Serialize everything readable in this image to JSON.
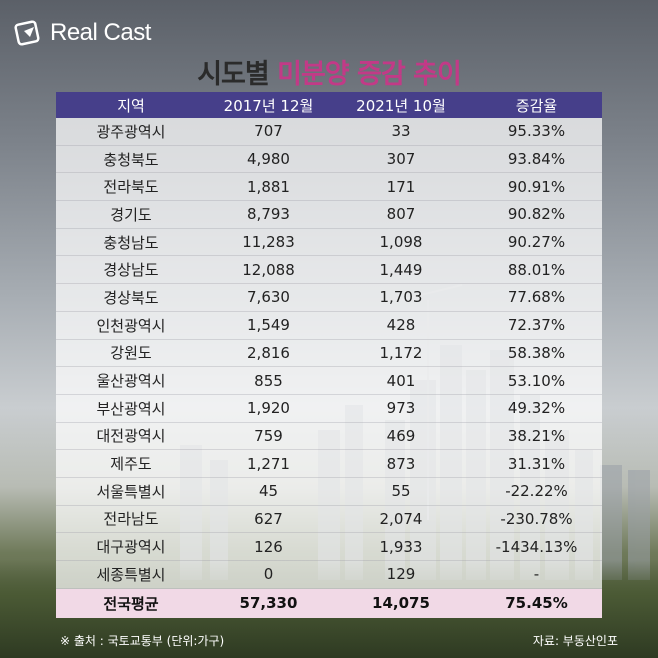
{
  "brand": {
    "name": "Real Cast"
  },
  "title": {
    "prefix": "시도별",
    "highlight": "미분양 증감 추이"
  },
  "chart_data": {
    "type": "table",
    "columns": [
      "지역",
      "2017년 12월",
      "2021년 10월",
      "증감율"
    ],
    "rows": [
      [
        "광주광역시",
        "707",
        "33",
        "95.33%"
      ],
      [
        "충청북도",
        "4,980",
        "307",
        "93.84%"
      ],
      [
        "전라북도",
        "1,881",
        "171",
        "90.91%"
      ],
      [
        "경기도",
        "8,793",
        "807",
        "90.82%"
      ],
      [
        "충청남도",
        "11,283",
        "1,098",
        "90.27%"
      ],
      [
        "경상남도",
        "12,088",
        "1,449",
        "88.01%"
      ],
      [
        "경상북도",
        "7,630",
        "1,703",
        "77.68%"
      ],
      [
        "인천광역시",
        "1,549",
        "428",
        "72.37%"
      ],
      [
        "강원도",
        "2,816",
        "1,172",
        "58.38%"
      ],
      [
        "울산광역시",
        "855",
        "401",
        "53.10%"
      ],
      [
        "부산광역시",
        "1,920",
        "973",
        "49.32%"
      ],
      [
        "대전광역시",
        "759",
        "469",
        "38.21%"
      ],
      [
        "제주도",
        "1,271",
        "873",
        "31.31%"
      ],
      [
        "서울특별시",
        "45",
        "55",
        "-22.22%"
      ],
      [
        "전라남도",
        "627",
        "2,074",
        "-230.78%"
      ],
      [
        "대구광역시",
        "126",
        "1,933",
        "-1434.13%"
      ],
      [
        "세종특별시",
        "0",
        "129",
        "-"
      ]
    ],
    "total": [
      "전국평균",
      "57,330",
      "14,075",
      "75.45%"
    ]
  },
  "footer": {
    "source": "※ 출처 : 국토교통부 (단위:가구)",
    "data_from": "자료: 부동산인포"
  },
  "colors": {
    "header": "#463f8a",
    "highlight": "#c23a87",
    "total_row": "#f1d9e6"
  }
}
